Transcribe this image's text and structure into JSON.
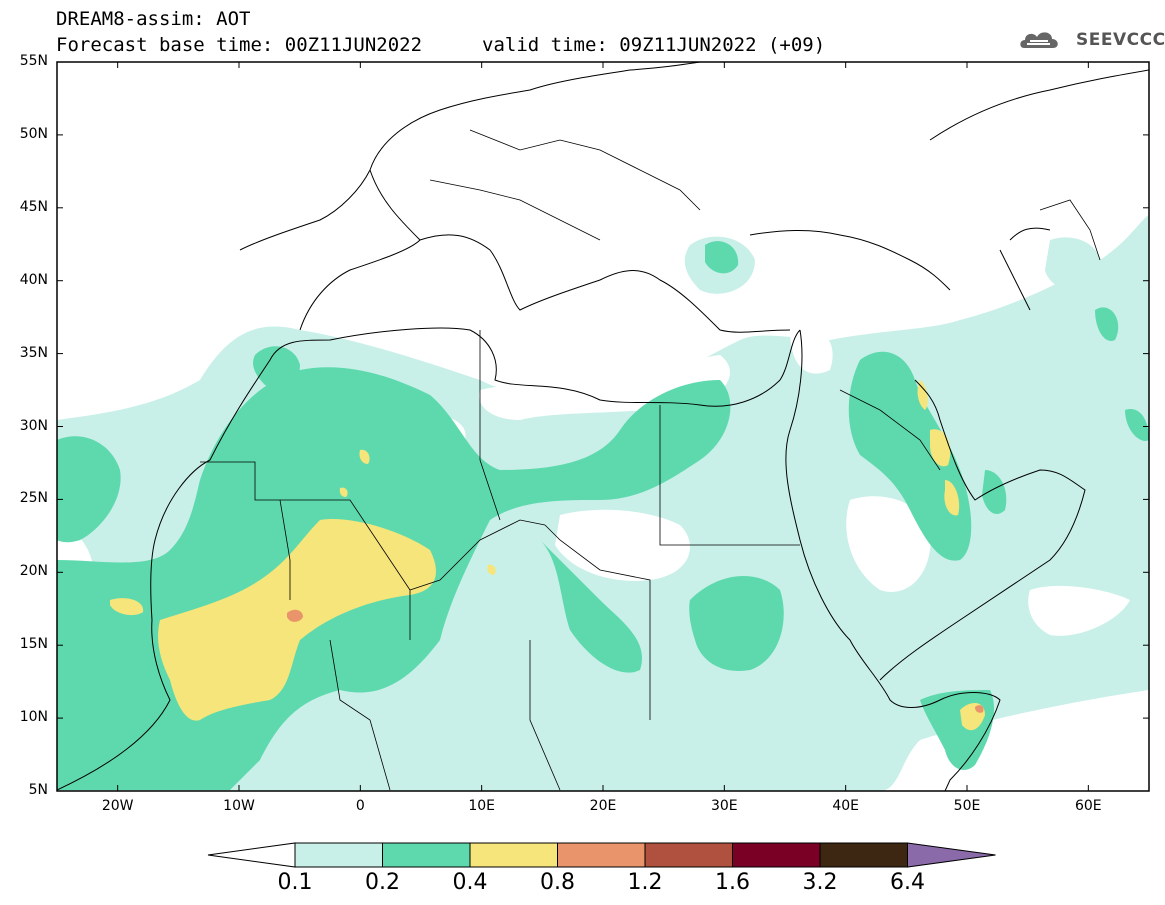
{
  "header": {
    "title": "DREAM8-assim: AOT",
    "base_time": "Forecast base time: 00Z11JUN2022",
    "valid_time": "valid time: 09Z11JUN2022 (+09)",
    "logo_text": "SEEVCCC"
  },
  "map": {
    "lat_labels": [
      "55N",
      "50N",
      "45N",
      "40N",
      "35N",
      "30N",
      "25N",
      "20N",
      "15N",
      "10N",
      "5N"
    ],
    "lon_labels": [
      "20W",
      "10W",
      "0",
      "10E",
      "20E",
      "30E",
      "40E",
      "50E",
      "60E"
    ],
    "extent": {
      "lon_min": -25,
      "lon_max": 65,
      "lat_min": 5,
      "lat_max": 55
    }
  },
  "colorbar": {
    "labels": [
      "0.1",
      "0.2",
      "0.4",
      "0.8",
      "1.2",
      "1.6",
      "3.2",
      "6.4"
    ],
    "colors": [
      "#ffffff",
      "#c8f0e8",
      "#5ed9ad",
      "#f5e57a",
      "#e9946a",
      "#b0503e",
      "#7a0025",
      "#3d2612",
      "#8a6aa8"
    ]
  }
}
